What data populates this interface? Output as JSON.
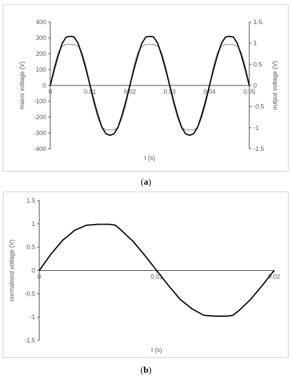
{
  "panels": [
    {
      "caption_letter": "a",
      "chart_data": {
        "type": "line",
        "xlabel": "t (s)",
        "ylabel": "mains voltage (V)",
        "y2label": "output voltage (V)",
        "xlim": [
          0,
          0.05
        ],
        "ylim": [
          -400,
          400
        ],
        "y2lim": [
          -1.5,
          1.5
        ],
        "xticks": [
          "0",
          "0.01",
          "0.02",
          "0.03",
          "0.04",
          "0.05"
        ],
        "yticks": [
          "400",
          "300",
          "200",
          "100",
          "0",
          "-100",
          "-200",
          "-300",
          "-400"
        ],
        "y2ticks": [
          "1.5",
          "1",
          "0.5",
          "0",
          "-0.5",
          "-1",
          "-1.5"
        ],
        "series": [
          {
            "axis": "y2",
            "color": "#aaaaaa",
            "x": [
              0,
              0.001,
              0.002,
              0.003,
              0.004,
              0.005,
              0.006,
              0.007,
              0.008,
              0.009,
              0.01,
              0.011,
              0.012,
              0.013,
              0.014,
              0.015,
              0.016,
              0.017,
              0.018,
              0.019,
              0.02,
              0.021,
              0.022,
              0.023,
              0.024,
              0.025,
              0.026,
              0.027,
              0.028,
              0.029,
              0.03,
              0.031,
              0.032,
              0.033,
              0.034,
              0.035,
              0.036,
              0.037,
              0.038,
              0.039,
              0.04,
              0.041,
              0.042,
              0.043,
              0.044,
              0.045,
              0.046,
              0.047,
              0.048,
              0.049,
              0.05
            ],
            "values": [
              0,
              0.45,
              0.78,
              0.93,
              0.97,
              0.97,
              0.97,
              0.93,
              0.78,
              0.45,
              0,
              -0.45,
              -0.78,
              -0.99,
              -1.05,
              -1.05,
              -1.05,
              -0.99,
              -0.78,
              -0.45,
              0,
              0.45,
              0.78,
              0.93,
              0.97,
              0.97,
              0.97,
              0.93,
              0.78,
              0.45,
              0,
              -0.45,
              -0.78,
              -0.99,
              -1.05,
              -1.05,
              -1.05,
              -0.99,
              -0.78,
              -0.45,
              0,
              0.45,
              0.78,
              0.93,
              0.97,
              0.97,
              0.97,
              0.93,
              0.78,
              0.45,
              0
            ]
          },
          {
            "axis": "y",
            "color": "#000000",
            "x": [
              0,
              0.001,
              0.002,
              0.003,
              0.004,
              0.005,
              0.006,
              0.007,
              0.008,
              0.009,
              0.01,
              0.011,
              0.012,
              0.013,
              0.014,
              0.015,
              0.016,
              0.017,
              0.018,
              0.019,
              0.02,
              0.021,
              0.022,
              0.023,
              0.024,
              0.025,
              0.026,
              0.027,
              0.028,
              0.029,
              0.03,
              0.031,
              0.032,
              0.033,
              0.034,
              0.035,
              0.036,
              0.037,
              0.038,
              0.039,
              0.04,
              0.041,
              0.042,
              0.043,
              0.044,
              0.045,
              0.046,
              0.047,
              0.048,
              0.049,
              0.05
            ],
            "values": [
              0,
              100,
              190,
              265,
              305,
              310,
              305,
              265,
              190,
              100,
              0,
              -100,
              -190,
              -265,
              -305,
              -315,
              -305,
              -265,
              -190,
              -100,
              0,
              100,
              190,
              265,
              305,
              310,
              305,
              265,
              190,
              100,
              0,
              -100,
              -190,
              -265,
              -305,
              -315,
              -305,
              -265,
              -190,
              -100,
              0,
              100,
              190,
              265,
              305,
              310,
              305,
              265,
              190,
              100,
              0
            ]
          }
        ]
      }
    },
    {
      "caption_letter": "b",
      "chart_data": {
        "type": "line",
        "xlabel": "t (s)",
        "ylabel": "normalised voltage (V)",
        "xlim": [
          0,
          0.02
        ],
        "ylim": [
          -1.5,
          1.5
        ],
        "xticks": [
          "0",
          "0.01",
          "0.02"
        ],
        "yticks": [
          "1.5",
          "1",
          "0.5",
          "0",
          "-0.5",
          "-1",
          "-1.5"
        ],
        "series": [
          {
            "axis": "y",
            "color": "#000000",
            "x": [
              0,
              0.001,
              0.002,
              0.0025,
              0.003,
              0.004,
              0.005,
              0.006,
              0.0065,
              0.007,
              0.008,
              0.009,
              0.01,
              0.011,
              0.012,
              0.0125,
              0.013,
              0.014,
              0.015,
              0.016,
              0.0165,
              0.017,
              0.018,
              0.019,
              0.02
            ],
            "values": [
              0,
              0.35,
              0.65,
              0.75,
              0.86,
              0.97,
              0.99,
              0.99,
              0.97,
              0.86,
              0.62,
              0.32,
              0,
              -0.32,
              -0.62,
              -0.72,
              -0.82,
              -0.96,
              -0.98,
              -0.98,
              -0.96,
              -0.86,
              -0.62,
              -0.32,
              0
            ]
          }
        ]
      }
    }
  ]
}
